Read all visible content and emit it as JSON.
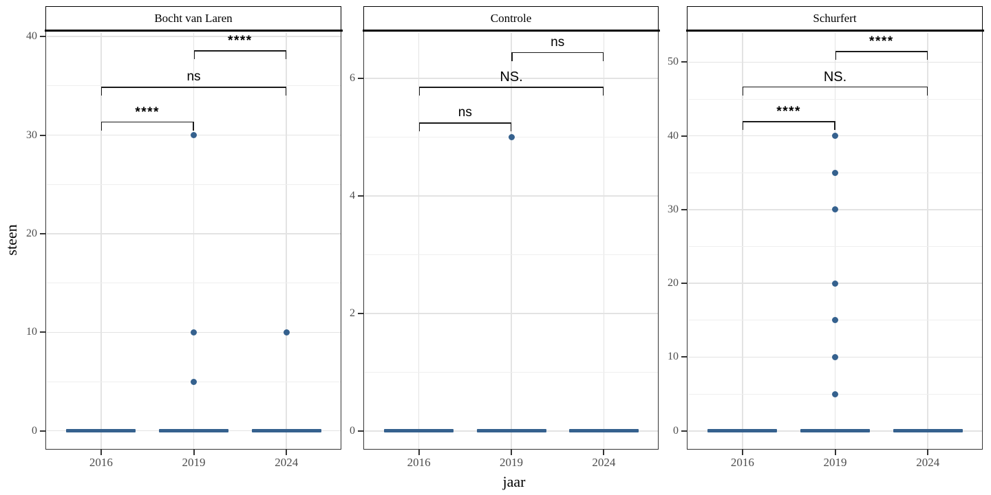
{
  "figure": {
    "colors": {
      "point": "#35618E",
      "box": "#35618E",
      "panel_border": "#333333",
      "strip_border": "#000000",
      "grid_major": "#e3e3e3",
      "grid_minor": "#efefef",
      "tick_label": "#4d4d4d",
      "text": "#000000",
      "background": "#ffffff"
    }
  },
  "chart_data": {
    "type": "scatter",
    "subtype": "faceted jitter points with collapsed boxplots at 0 and significance brackets (ggplot2/ggpubr style)",
    "xlabel": "jaar",
    "ylabel": "steen",
    "categories": [
      "2016",
      "2019",
      "2024"
    ],
    "grid": true,
    "legend": "none",
    "facets": [
      {
        "title": "Bocht van Laren",
        "ylim": [
          -1.8,
          40.4
        ],
        "yticks": [
          0,
          10,
          20,
          30,
          40
        ],
        "yminor": [
          5,
          15,
          25,
          35
        ],
        "boxes": [
          {
            "year": "2016",
            "value": 0
          },
          {
            "year": "2019",
            "value": 0
          },
          {
            "year": "2024",
            "value": 0
          }
        ],
        "points": [
          {
            "year": "2019",
            "value": 30
          },
          {
            "year": "2019",
            "value": 10
          },
          {
            "year": "2019",
            "value": 5
          },
          {
            "year": "2024",
            "value": 10
          }
        ],
        "brackets": [
          {
            "group1": "2019",
            "group2": "2024",
            "label": "****",
            "y": 38.6
          },
          {
            "group1": "2016",
            "group2": "2024",
            "label": "ns",
            "y": 34.9
          },
          {
            "group1": "2016",
            "group2": "2019",
            "label": "****",
            "y": 31.4
          }
        ]
      },
      {
        "title": "Controle",
        "ylim": [
          -0.3,
          6.78
        ],
        "yticks": [
          0,
          2,
          4,
          6
        ],
        "yminor": [
          1,
          3,
          5
        ],
        "boxes": [
          {
            "year": "2016",
            "value": 0
          },
          {
            "year": "2019",
            "value": 0
          },
          {
            "year": "2024",
            "value": 0
          }
        ],
        "points": [
          {
            "year": "2019",
            "value": 5
          }
        ],
        "brackets": [
          {
            "group1": "2019",
            "group2": "2024",
            "label": "ns",
            "y": 6.45
          },
          {
            "group1": "2016",
            "group2": "2024",
            "label": "NS.",
            "y": 5.86
          },
          {
            "group1": "2016",
            "group2": "2019",
            "label": "ns",
            "y": 5.25
          }
        ]
      },
      {
        "title": "Schurfert",
        "ylim": [
          -2.4,
          54.0
        ],
        "yticks": [
          0,
          10,
          20,
          30,
          40,
          50
        ],
        "yminor": [
          5,
          15,
          25,
          35,
          45
        ],
        "boxes": [
          {
            "year": "2016",
            "value": 0
          },
          {
            "year": "2019",
            "value": 0
          },
          {
            "year": "2024",
            "value": 0
          }
        ],
        "points": [
          {
            "year": "2019",
            "value": 40
          },
          {
            "year": "2019",
            "value": 35
          },
          {
            "year": "2019",
            "value": 30
          },
          {
            "year": "2019",
            "value": 20
          },
          {
            "year": "2019",
            "value": 15
          },
          {
            "year": "2019",
            "value": 10
          },
          {
            "year": "2019",
            "value": 5
          }
        ],
        "brackets": [
          {
            "group1": "2019",
            "group2": "2024",
            "label": "****",
            "y": 51.5
          },
          {
            "group1": "2016",
            "group2": "2024",
            "label": "NS.",
            "y": 46.7
          },
          {
            "group1": "2016",
            "group2": "2019",
            "label": "****",
            "y": 42.0
          }
        ]
      }
    ]
  }
}
